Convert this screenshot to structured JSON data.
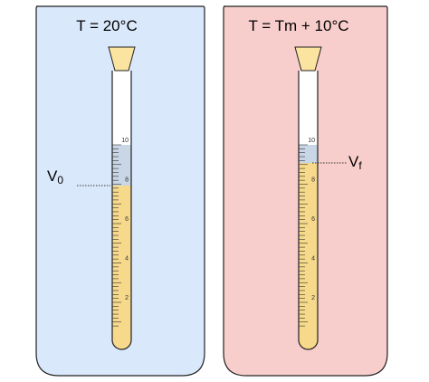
{
  "panels": [
    {
      "title": "T = 20°C",
      "label": "V",
      "label_sub": "0",
      "scale_labels": [
        "10",
        "8",
        "6",
        "4",
        "2"
      ]
    },
    {
      "title": "T = Tm + 10°C",
      "label": "V",
      "label_sub": "f",
      "scale_labels": [
        "10",
        "8",
        "6",
        "4",
        "2"
      ]
    }
  ]
}
